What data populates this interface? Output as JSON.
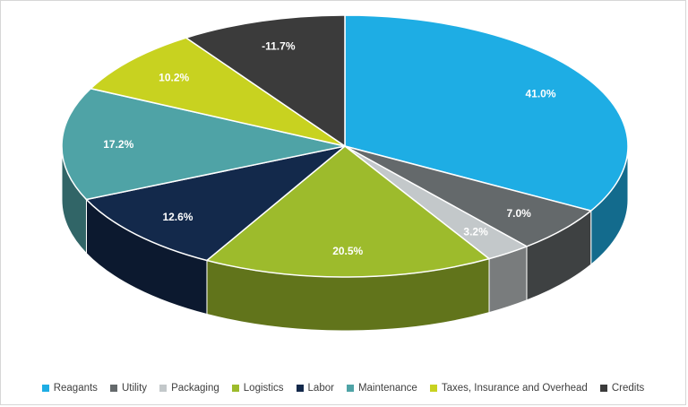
{
  "chart": {
    "background_color": "#FFFFFF",
    "border_color": "#D6D6D6",
    "legend_text_color": "#404040",
    "data_label_color": "#FFFFFF"
  },
  "chart_data": {
    "type": "pie",
    "style": "3d",
    "title": "",
    "legend_position": "bottom",
    "start_angle_deg": 0,
    "direction": "clockwise",
    "categories": [
      "Reagants",
      "Utility",
      "Packaging",
      "Logistics",
      "Labor",
      "Maintenance",
      "Taxes, Insurance and Overhead",
      "Credits"
    ],
    "values": [
      41.0,
      7.0,
      3.2,
      20.5,
      12.6,
      17.2,
      10.2,
      -11.7
    ],
    "labels": [
      "41.0%",
      "7.0%",
      "3.2%",
      "20.5%",
      "12.6%",
      "17.2%",
      "10.2%",
      "-11.7%"
    ],
    "colors": [
      "#1EADE4",
      "#64696B",
      "#C3C8CA",
      "#9DBB2C",
      "#13294B",
      "#4FA3A6",
      "#C8D220",
      "#3B3B3B"
    ]
  }
}
